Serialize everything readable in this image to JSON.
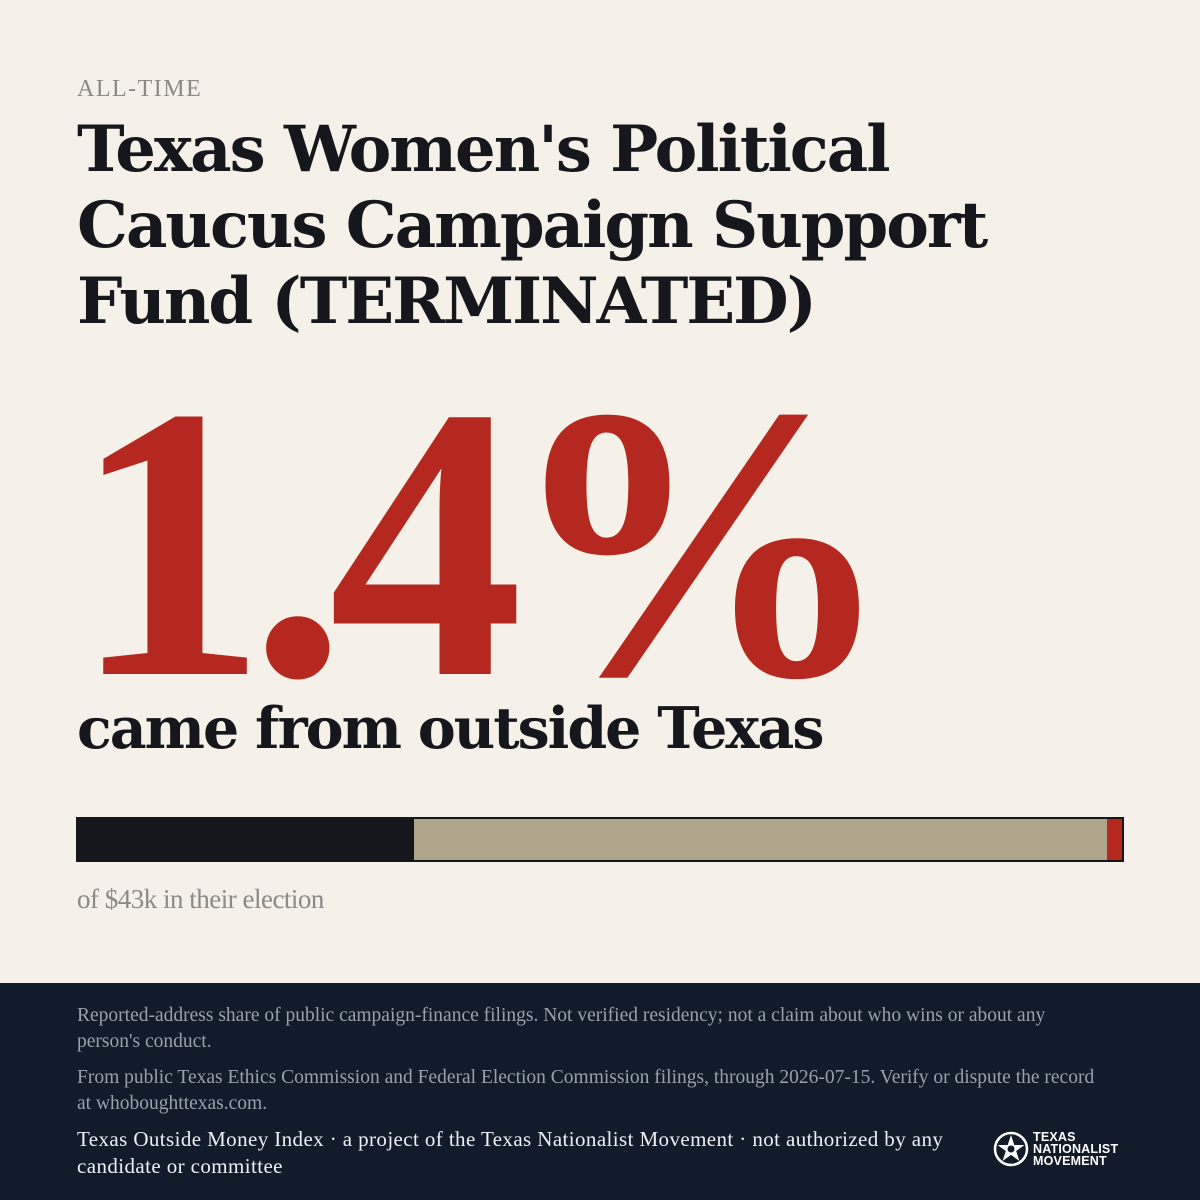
{
  "kicker": "ALL-TIME",
  "title": "Texas Women's Political Caucus Campaign Support Fund (TERMINATED)",
  "stat": {
    "value": "1.4%",
    "caption": "came from outside Texas"
  },
  "bar": {
    "segments": [
      {
        "fraction": 0.322,
        "color": "#15171c"
      },
      {
        "fraction": 0.664,
        "color": "#b0a48a"
      },
      {
        "fraction": 0.014,
        "color": "#b52820"
      }
    ],
    "note": "of $43k in their election"
  },
  "footer": {
    "disclaimer1": "Reported-address share of public campaign-finance filings. Not verified residency; not a claim about who wins or about any person's conduct.",
    "disclaimer2": "From public Texas Ethics Commission and Federal Election Commission filings, through 2026-07-15. Verify or dispute the record at whoboughttexas.com.",
    "credit": "Texas Outside Money Index · a project of the Texas Nationalist Movement · not authorized by any candidate or committee",
    "logo": {
      "icon": "star-seal-icon",
      "line1": "TEXAS",
      "line2": "NATIONALIST",
      "line3": "MOVEMENT"
    }
  },
  "colors": {
    "background": "#f5f0e8",
    "accent": "#b52820",
    "footer": "#111b29"
  }
}
